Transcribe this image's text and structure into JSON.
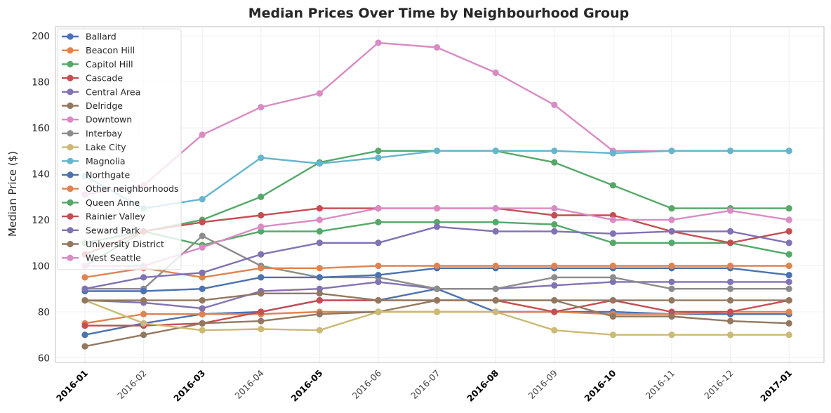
{
  "chart_data": {
    "type": "line",
    "title": "Median Prices Over Time by Neighbourhood Group",
    "xlabel": "",
    "ylabel": "Median Price ($)",
    "ylim": [
      58,
      204
    ],
    "yticks": [
      60,
      80,
      100,
      120,
      140,
      160,
      180,
      200
    ],
    "grid": true,
    "legend_position": "top-left",
    "bold_ticks": [
      "2016-01",
      "2016-03",
      "2016-05",
      "2016-08",
      "2016-10",
      "2017-01"
    ],
    "x": [
      "2016-01",
      "2016-02",
      "2016-03",
      "2016-04",
      "2016-05",
      "2016-06",
      "2016-07",
      "2016-08",
      "2016-09",
      "2016-10",
      "2016-11",
      "2016-12",
      "2017-01"
    ],
    "series": [
      {
        "name": "Ballard",
        "color": "#4c72b0",
        "values": [
          70,
          75,
          79,
          80,
          85,
          85,
          90,
          80,
          80,
          80,
          79,
          79,
          79
        ]
      },
      {
        "name": "Beacon Hill",
        "color": "#dd8452",
        "values": [
          75,
          79,
          79,
          79,
          80,
          80,
          80,
          80,
          80,
          79,
          79,
          80,
          80
        ]
      },
      {
        "name": "Capitol Hill",
        "color": "#55a868",
        "values": [
          110,
          115,
          120,
          130,
          145,
          150,
          150,
          150,
          145,
          135,
          125,
          125,
          125
        ]
      },
      {
        "name": "Cascade",
        "color": "#c44e52",
        "values": [
          74,
          74,
          75,
          80,
          85,
          85,
          85,
          85,
          80,
          85,
          80,
          80,
          85
        ]
      },
      {
        "name": "Central Area",
        "color": "#8172b3",
        "values": [
          85,
          84,
          81.5,
          89,
          90,
          93,
          90,
          90,
          91.5,
          93,
          93,
          93,
          93
        ]
      },
      {
        "name": "Delridge",
        "color": "#937860",
        "values": [
          65,
          70,
          75,
          76,
          79,
          80,
          85,
          85,
          85,
          78,
          78,
          76,
          75
        ]
      },
      {
        "name": "Downtown",
        "color": "#da8bc3",
        "values": [
          131,
          135,
          157,
          169,
          175,
          197,
          195,
          184,
          170,
          150,
          150,
          150,
          150
        ]
      },
      {
        "name": "Interbay",
        "color": "#8c8c8c",
        "values": [
          90,
          90,
          113,
          100,
          95,
          95,
          90,
          90,
          95,
          95,
          90,
          90,
          90
        ]
      },
      {
        "name": "Lake City",
        "color": "#ccb974",
        "values": [
          85,
          75,
          72,
          72.5,
          72,
          80,
          80,
          80,
          72,
          70,
          70,
          70,
          70
        ]
      },
      {
        "name": "Magnolia",
        "color": "#64b5cd",
        "values": [
          139,
          125,
          129,
          147,
          144.5,
          147,
          150,
          150,
          150,
          149,
          150,
          150,
          150
        ]
      },
      {
        "name": "Northgate",
        "color": "#4c72b0",
        "values": [
          89,
          89,
          90,
          95,
          95,
          96,
          99,
          99,
          99,
          99,
          99,
          99,
          96
        ]
      },
      {
        "name": "Other neighborhoods",
        "color": "#dd8452",
        "values": [
          95,
          99,
          95,
          99,
          99,
          100,
          100,
          100,
          100,
          100,
          100,
          100,
          100
        ]
      },
      {
        "name": "Queen Anne",
        "color": "#55a868",
        "values": [
          100,
          115,
          109,
          115,
          115,
          119,
          119,
          119,
          118,
          110,
          110,
          110,
          105
        ]
      },
      {
        "name": "Rainier Valley",
        "color": "#c44e52",
        "values": [
          105,
          115,
          119,
          122,
          125,
          125,
          125,
          125,
          122,
          122,
          115,
          110,
          115
        ]
      },
      {
        "name": "Seward Park",
        "color": "#8172b3",
        "values": [
          90,
          95,
          97,
          105,
          110,
          110,
          117,
          115,
          115,
          114,
          115,
          115,
          110
        ]
      },
      {
        "name": "University District",
        "color": "#937860",
        "values": [
          85,
          85,
          85,
          88,
          88,
          85,
          85,
          85,
          85,
          85,
          85,
          85,
          85
        ]
      },
      {
        "name": "West Seattle",
        "color": "#da8bc3",
        "values": [
          100,
          100,
          108,
          117,
          120,
          125,
          125,
          125,
          125,
          120,
          120,
          124,
          120
        ]
      }
    ]
  }
}
